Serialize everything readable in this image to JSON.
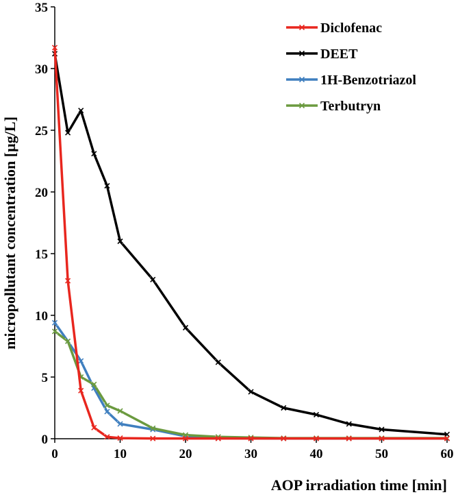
{
  "chart_data": {
    "type": "line",
    "title": "",
    "xlabel": "AOP irradiation time [min]",
    "ylabel": "micropollutant concentration [µg/L]",
    "xlim": [
      0,
      60
    ],
    "ylim": [
      0,
      35
    ],
    "xticks": [
      0,
      10,
      20,
      30,
      40,
      50,
      60
    ],
    "yticks": [
      0,
      5,
      10,
      15,
      20,
      25,
      30,
      35
    ],
    "grid": false,
    "legend_position": "top-right",
    "series": [
      {
        "name": "Diclofenac",
        "color": "#e8261e",
        "x": [
          0,
          2,
          4,
          6,
          8,
          10,
          15,
          20,
          25,
          30,
          35,
          40,
          45,
          50,
          60
        ],
        "y": [
          31.7,
          12.8,
          3.9,
          0.9,
          0.15,
          0.05,
          0.02,
          0.02,
          0.02,
          0.02,
          0.02,
          0.02,
          0.02,
          0.02,
          0.02
        ]
      },
      {
        "name": "DEET",
        "color": "#000000",
        "x": [
          0,
          2,
          4,
          6,
          8,
          10,
          15,
          20,
          25,
          30,
          35,
          40,
          45,
          50,
          60
        ],
        "y": [
          31.2,
          24.8,
          26.6,
          23.1,
          20.5,
          16.0,
          12.9,
          9.0,
          6.2,
          3.8,
          2.5,
          1.95,
          1.2,
          0.75,
          0.35
        ]
      },
      {
        "name": "1H-Benzotriazol",
        "color": "#3f7fbf",
        "x": [
          0,
          2,
          4,
          6,
          8,
          10,
          15,
          20,
          25,
          30,
          35,
          40,
          45,
          50,
          60
        ],
        "y": [
          9.4,
          7.9,
          6.3,
          4.1,
          2.2,
          1.2,
          0.75,
          0.2,
          0.05,
          0.03,
          0.02,
          0.02,
          0.02,
          0.02,
          0.02
        ]
      },
      {
        "name": "Terbutryn",
        "color": "#6b9a3f",
        "x": [
          0,
          2,
          4,
          6,
          8,
          10,
          15,
          20,
          25,
          30,
          35,
          40,
          45,
          50,
          60
        ],
        "y": [
          8.7,
          7.9,
          5.0,
          4.4,
          2.7,
          2.25,
          0.85,
          0.3,
          0.15,
          0.1,
          0.05,
          0.05,
          0.05,
          0.05,
          0.05
        ]
      }
    ]
  }
}
